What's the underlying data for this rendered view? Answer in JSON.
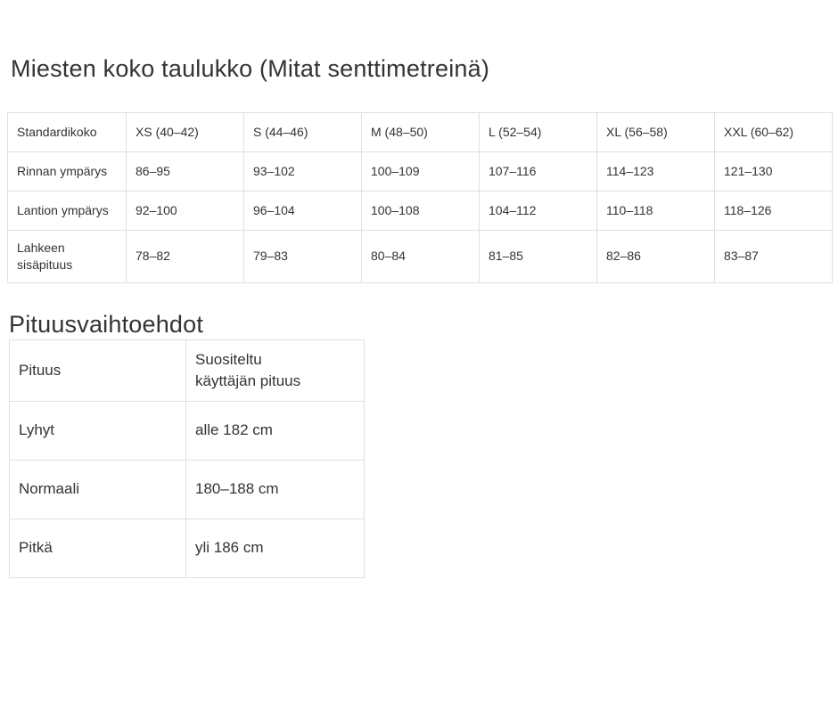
{
  "sizes_section": {
    "title": "Miesten koko taulukko (Mitat senttimetreinä)"
  },
  "size_table": {
    "columns": [
      "Standardikoko",
      "XS (40–42)",
      "S (44–46)",
      "M (48–50)",
      "L (52–54)",
      "XL (56–58)",
      "XXL (60–62)"
    ],
    "rows": [
      {
        "label": "Rinnan ympärys",
        "values": [
          "86–95",
          "93–102",
          "100–109",
          "107–116",
          "114–123",
          "121–130"
        ]
      },
      {
        "label": "Lantion ympärys",
        "values": [
          "92–100",
          "96–104",
          "100–108",
          "104–112",
          "110–118",
          "118–126"
        ]
      },
      {
        "label": "Lahkeen sisäpituus",
        "values": [
          "78–82",
          "79–83",
          "80–84",
          "81–85",
          "82–86",
          "83–87"
        ]
      }
    ]
  },
  "lengths_section": {
    "title": "Pituusvaihtoehdot"
  },
  "length_table": {
    "columns": [
      "Pituus",
      "Suositeltu käyttäjän pituus"
    ],
    "rows": [
      {
        "label": "Lyhyt",
        "value": "alle 182 cm"
      },
      {
        "label": "Normaali",
        "value": "180–188 cm"
      },
      {
        "label": "Pitkä",
        "value": "yli 186 cm"
      }
    ]
  },
  "colors": {
    "background": "#ffffff",
    "border": "#e0e0e0",
    "text": "#333333"
  }
}
